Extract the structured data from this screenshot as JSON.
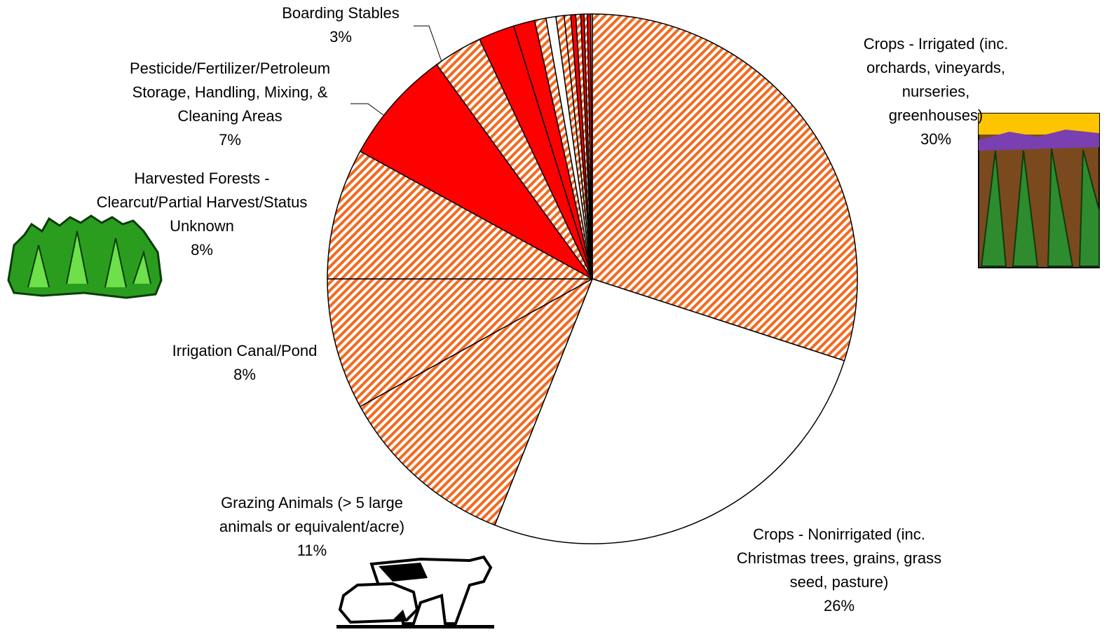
{
  "chart_data": {
    "type": "pie",
    "categories": [
      "Crops - Irrigated (inc.\norchards, vineyards, nurseries,\ngreenhouses)",
      "Crops - Nonirrigated (inc.\nChristmas trees, grains, grass\nseed, pasture)",
      "Grazing Animals (> 5 large\nanimals or equivalent/acre)",
      "Irrigation Canal/Pond",
      "Harvested Forests -\nClearcut/Partial Harvest/Status\nUnknown",
      "Pesticide/Fertilizer/Petroleum\nStorage, Handling, Mixing, &\nCleaning Areas",
      "Boarding Stables",
      null,
      null,
      null,
      null,
      null,
      null,
      null,
      null,
      null,
      null,
      null,
      null
    ],
    "values": [
      30,
      26,
      11,
      8,
      8,
      7,
      3,
      2.2,
      1.3,
      0.7,
      0.6,
      0.5,
      0.4,
      0.3,
      0.3,
      0.2,
      0.2,
      0.2,
      0.1
    ],
    "value_labels": [
      "30%",
      "26%",
      "11%",
      "8%",
      "8%",
      "7%",
      "3%",
      null,
      null,
      null,
      null,
      null,
      null,
      null,
      null,
      null,
      null,
      null,
      null
    ],
    "colors": [
      "#f26a21",
      "#ffffff",
      "#f26a21",
      "#f26a21",
      "#f26a21",
      "#ff0000",
      "#f26a21",
      "#ff0000",
      "#ff0000",
      "#f26a21",
      "#ffffff",
      "#f26a21",
      "#f26a21",
      "#ff0000",
      "#f26a21",
      "#ff0000",
      "#f26a21",
      "#ff0000",
      "#ffffff"
    ],
    "hatched": [
      true,
      false,
      true,
      true,
      true,
      false,
      true,
      false,
      false,
      true,
      false,
      true,
      true,
      false,
      true,
      false,
      true,
      false,
      false
    ]
  }
}
